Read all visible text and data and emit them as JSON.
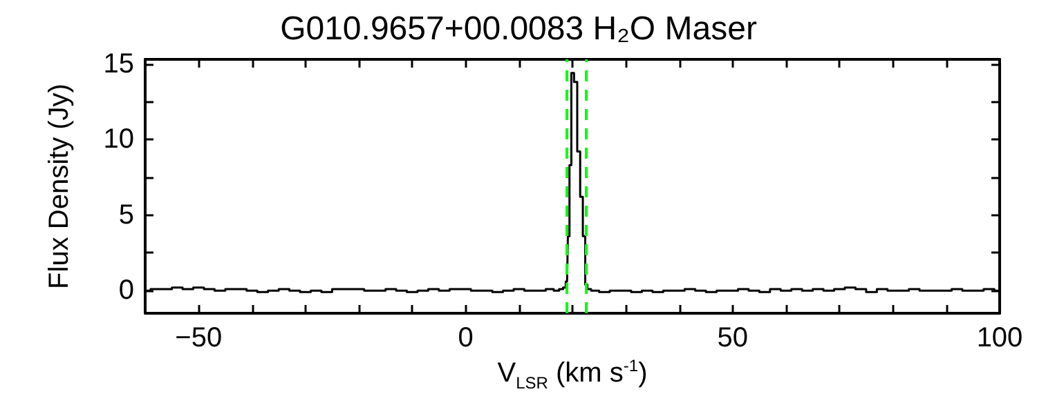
{
  "chart_data": {
    "type": "step",
    "title": "G010.9657+00.0083 H₂O Maser",
    "xlabel": "V$_{LSR}$ (km s$^{-1}$)",
    "ylabel": "Flux Density (Jy)",
    "x": [
      -60,
      -58,
      -56,
      -54,
      -52,
      -50,
      -48,
      -46,
      -44,
      -42,
      -40,
      -38,
      -36,
      -34,
      -32,
      -30,
      -28,
      -26,
      -24,
      -22,
      -20,
      -18,
      -16,
      -14,
      -12,
      -10,
      -8,
      -6,
      -4,
      -2,
      0,
      2,
      4,
      6,
      8,
      10,
      12,
      14,
      16,
      17,
      18,
      18.5,
      19,
      19.3,
      19.6,
      20,
      20.6,
      21.2,
      21.7,
      22.2,
      22.6,
      23,
      24,
      26,
      28,
      30,
      32,
      34,
      36,
      38,
      40,
      42,
      44,
      46,
      48,
      50,
      52,
      54,
      56,
      58,
      60,
      62,
      64,
      66,
      68,
      70,
      72,
      74,
      76,
      78,
      80,
      82,
      84,
      86,
      88,
      90,
      92,
      94,
      96,
      98,
      100
    ],
    "series": [
      {
        "color": "#000000",
        "values": [
          0.0,
          0.1,
          0.1,
          0.2,
          0.1,
          0.2,
          0.1,
          0.0,
          0.1,
          0.1,
          0.0,
          -0.1,
          0.0,
          0.1,
          0.0,
          -0.1,
          0.0,
          -0.1,
          0.1,
          0.1,
          0.1,
          0.0,
          0.0,
          0.1,
          0.0,
          -0.1,
          0.0,
          0.1,
          0.0,
          0.1,
          0.1,
          0.0,
          0.0,
          -0.1,
          0.0,
          0.1,
          0.0,
          0.0,
          0.1,
          0.0,
          0.1,
          0.2,
          0.6,
          3.6,
          8.3,
          14.4,
          13.8,
          9.2,
          6.2,
          3.6,
          0.4,
          0.1,
          0.0,
          -0.1,
          0.0,
          0.0,
          -0.1,
          0.0,
          -0.1,
          0.0,
          0.0,
          0.1,
          0.0,
          -0.1,
          0.0,
          0.0,
          0.1,
          0.0,
          -0.1,
          0.1,
          0.0,
          0.1,
          0.0,
          0.1,
          0.0,
          0.1,
          0.2,
          0.1,
          -0.1,
          0.1,
          0.0,
          0.0,
          0.1,
          0.0,
          0.0,
          0.0,
          0.1,
          0.0,
          0.0,
          0.1,
          0.0
        ]
      }
    ],
    "xlim": [
      -60,
      100
    ],
    "xticks": [
      {
        "value": -60,
        "label": null
      },
      -50,
      {
        "value": -40,
        "label": null
      },
      {
        "value": -30,
        "label": null
      },
      {
        "value": -20,
        "label": null
      },
      {
        "value": -10,
        "label": null
      },
      0,
      {
        "value": 10,
        "label": null
      },
      {
        "value": 20,
        "label": null
      },
      {
        "value": 30,
        "label": null
      },
      {
        "value": 40,
        "label": null
      },
      50,
      {
        "value": 60,
        "label": null
      },
      {
        "value": 70,
        "label": null
      },
      {
        "value": 80,
        "label": null
      },
      {
        "value": 90,
        "label": null
      },
      100
    ],
    "ylim": [
      -1.5,
      15.3
    ],
    "yticks": [
      0,
      {
        "value": 2.5,
        "label": null
      },
      5,
      {
        "value": 7.5,
        "label": null
      },
      10,
      {
        "value": 12.5,
        "label": null
      },
      15
    ],
    "ref_lines": [
      {
        "axis": "x",
        "value": 19.0,
        "color": "#00ff00",
        "line_style": "dashed"
      },
      {
        "axis": "x",
        "value": 22.4,
        "color": "#00ff00",
        "line_style": "dashed"
      }
    ],
    "grid": false,
    "marker": "none",
    "line_style": "solid"
  }
}
